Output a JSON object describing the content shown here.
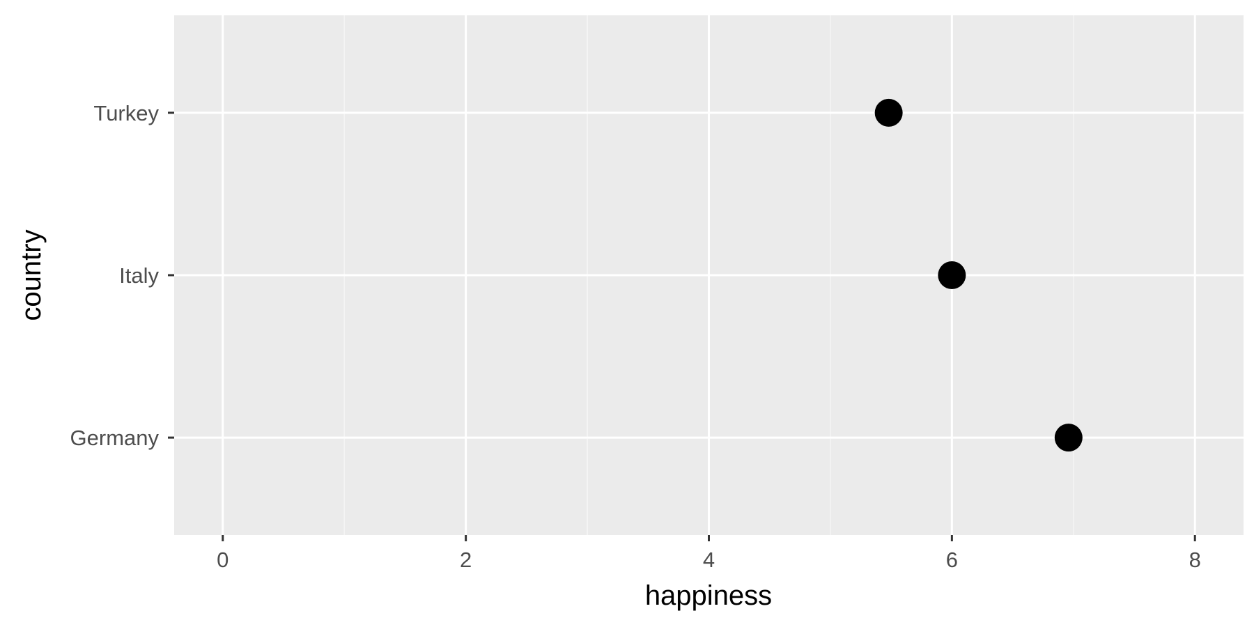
{
  "chart_data": {
    "type": "scatter",
    "title": "",
    "xlabel": "happiness",
    "ylabel": "country",
    "xlim": [
      -0.4,
      8.4
    ],
    "x_ticks": [
      0,
      2,
      4,
      6,
      8
    ],
    "categories": [
      "Germany",
      "Italy",
      "Turkey"
    ],
    "series": [
      {
        "points": [
          {
            "category": "Germany",
            "x": 6.96
          },
          {
            "category": "Italy",
            "x": 6.0
          },
          {
            "category": "Turkey",
            "x": 5.48
          }
        ]
      }
    ],
    "grid": true,
    "legend": "none",
    "colors": {
      "panel": "#ebebeb",
      "grid_major": "#ffffff",
      "grid_minor": "#f5f5f5",
      "point": "#000000",
      "tick": "#333333"
    }
  }
}
